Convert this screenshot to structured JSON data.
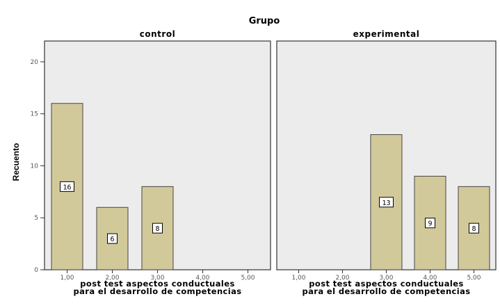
{
  "colors": {
    "plot_bg": "#ececec",
    "bar_fill": "#d2c99a",
    "bar_stroke": "#444444",
    "frame": "#333333"
  },
  "chart_data": {
    "type": "bar",
    "title": "Grupo",
    "ylabel": "Recuento",
    "ylim": [
      0,
      22
    ],
    "yticks": [
      0,
      5,
      10,
      15,
      20
    ],
    "ytick_labels": [
      "0",
      "5",
      "10",
      "15",
      "20"
    ],
    "categories": [
      "1,00",
      "2,00",
      "3,00",
      "4,00",
      "5,00"
    ],
    "grid": false,
    "panels": [
      {
        "name": "control",
        "xlabel": [
          "post test aspectos conductuales",
          "para el desarrollo de competencias"
        ],
        "values": [
          16,
          6,
          8,
          null,
          null
        ],
        "labels": [
          "16",
          "6",
          "8",
          "",
          ""
        ]
      },
      {
        "name": "experimental",
        "xlabel": [
          "post test aspectos conductuales",
          "para el desarrollo de competencias"
        ],
        "values": [
          null,
          null,
          13,
          9,
          8
        ],
        "labels": [
          "",
          "",
          "13",
          "9",
          "8"
        ]
      }
    ]
  }
}
